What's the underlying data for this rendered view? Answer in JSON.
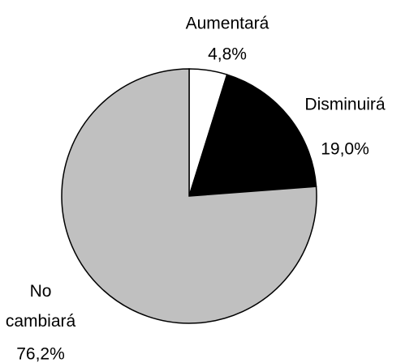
{
  "chart_data": {
    "type": "pie",
    "categories": [
      "Aumentará",
      "Disminuirá",
      "No cambiará"
    ],
    "values": [
      4.8,
      19.0,
      76.2
    ],
    "value_labels": [
      "4,8%",
      "19,0%",
      "76,2%"
    ],
    "colors": [
      "#ffffff",
      "#000000",
      "#c0c0c0"
    ]
  }
}
